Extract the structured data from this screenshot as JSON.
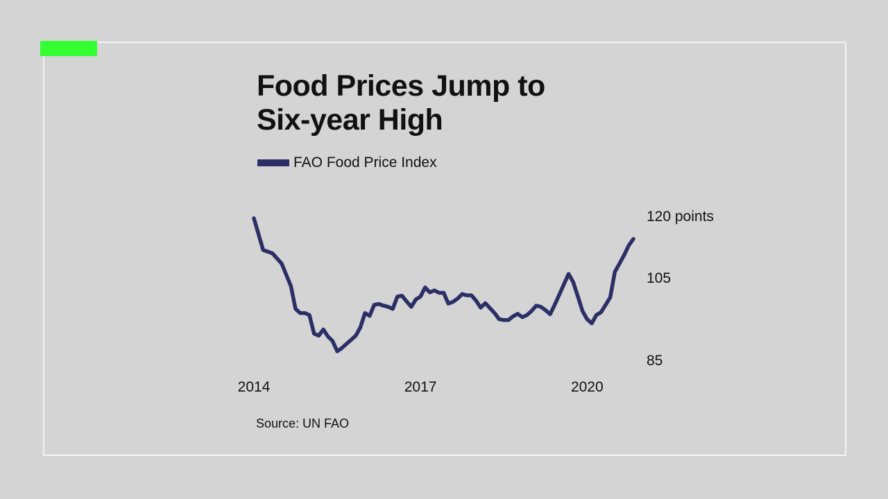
{
  "colors": {
    "background": "#d4d4d4",
    "frame": "#f4f4f4",
    "accent": "#33ff33",
    "series": "#2b2f66"
  },
  "title": "Food Prices Jump to\nSix-year High",
  "source": "Source: UN FAO",
  "chart_data": {
    "type": "line",
    "title": "Food Prices Jump to Six-year High",
    "xlabel": "",
    "ylabel": "",
    "x_ticks": [
      "2014",
      "2017",
      "2020"
    ],
    "y_ticks": [
      {
        "value": 120,
        "label": "120 points"
      },
      {
        "value": 105,
        "label": "105"
      },
      {
        "value": 85,
        "label": "85"
      }
    ],
    "ylim": [
      83,
      122
    ],
    "grid": false,
    "legend": "top-left",
    "series": [
      {
        "name": "FAO Food Price Index",
        "x": [
          "2014-01",
          "2014-03",
          "2014-05",
          "2014-07",
          "2014-09",
          "2014-10",
          "2014-11",
          "2014-12",
          "2015-01",
          "2015-02",
          "2015-03",
          "2015-04",
          "2015-05",
          "2015-06",
          "2015-07",
          "2015-08",
          "2015-09",
          "2015-10",
          "2015-11",
          "2015-12",
          "2016-01",
          "2016-02",
          "2016-03",
          "2016-04",
          "2016-05",
          "2016-06",
          "2016-07",
          "2016-08",
          "2016-09",
          "2016-10",
          "2016-11",
          "2016-12",
          "2017-01",
          "2017-02",
          "2017-03",
          "2017-04",
          "2017-05",
          "2017-06",
          "2017-07",
          "2017-08",
          "2017-09",
          "2017-10",
          "2017-11",
          "2017-12",
          "2018-01",
          "2018-02",
          "2018-03",
          "2018-04",
          "2018-05",
          "2018-06",
          "2018-07",
          "2018-08",
          "2018-09",
          "2018-10",
          "2018-11",
          "2018-12",
          "2019-01",
          "2019-02",
          "2019-03",
          "2019-04",
          "2019-05",
          "2019-06",
          "2019-07",
          "2019-08",
          "2019-09",
          "2019-10",
          "2019-11",
          "2019-12",
          "2020-01",
          "2020-02",
          "2020-03",
          "2020-04",
          "2020-05",
          "2020-06",
          "2020-07",
          "2020-08",
          "2020-09",
          "2020-10",
          "2020-11"
        ],
        "values": [
          119.5,
          111.8,
          111,
          108.5,
          103,
          97.5,
          96.5,
          96.5,
          96,
          91.5,
          91,
          92.5,
          90.8,
          89.7,
          87.2,
          88,
          89,
          90,
          91,
          93,
          96.5,
          95.8,
          98.5,
          98.7,
          98.3,
          98,
          97.5,
          100.5,
          100.7,
          99.3,
          98,
          99.8,
          100.5,
          102.7,
          101.5,
          102,
          101.4,
          101.4,
          98.8,
          99.2,
          100,
          101.1,
          100.8,
          100.8,
          99.5,
          97.8,
          98.9,
          97.7,
          96.5,
          95,
          94.8,
          94.8,
          95.7,
          96.3,
          95.5,
          96,
          97,
          98.3,
          98,
          97.2,
          96.2,
          98.5,
          101,
          103.5,
          106,
          104,
          100.5,
          97,
          95,
          94,
          96,
          96.7,
          98.5,
          100.3,
          106.5,
          108.5,
          110.6,
          112.9,
          114.5
        ]
      }
    ]
  }
}
